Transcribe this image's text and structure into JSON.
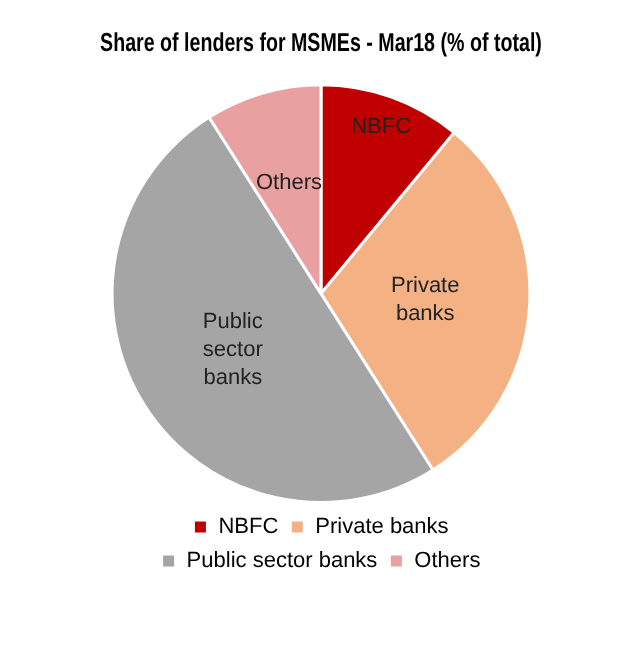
{
  "chart_data": {
    "type": "pie",
    "title": "Share of lenders for MSMEs - Mar18 (% of total)",
    "categories": [
      "NBFC",
      "Private banks",
      "Public sector banks",
      "Others"
    ],
    "values": [
      11,
      30,
      50,
      9
    ],
    "colors": [
      "#c00000",
      "#f4b183",
      "#a5a5a5",
      "#e8a0a0"
    ],
    "legend": "bottom"
  }
}
